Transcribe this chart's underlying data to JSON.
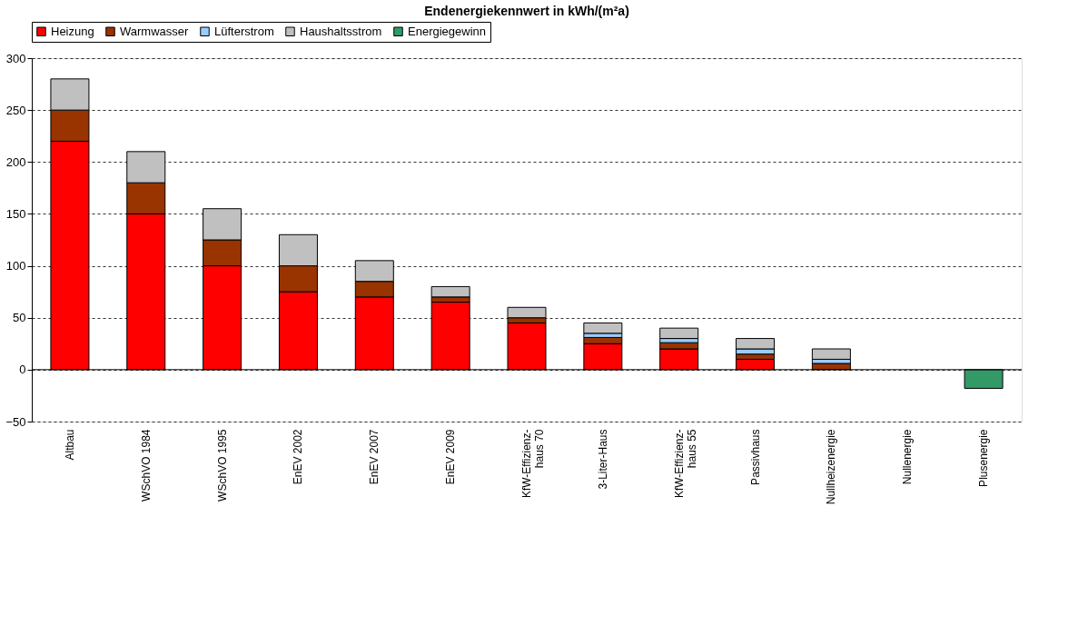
{
  "chart_data": {
    "type": "bar",
    "title": "Endenergiekennwert in kWh/(m²a)",
    "stacked": true,
    "categories": [
      "Altbau",
      "WSchVO 1984",
      "WSchVO 1995",
      "EnEV 2002",
      "EnEV 2007",
      "EnEV 2009",
      "KfW-Effizienz-\nhaus 70",
      "3-Liter-Haus",
      "KfW-Effizienz-\nhaus 55",
      "Passivhaus",
      "Nullheizenergie",
      "Nullenergie",
      "Plusenergie"
    ],
    "series": [
      {
        "name": "Heizung",
        "color": "#ff0000",
        "values": [
          220,
          150,
          100,
          75,
          70,
          65,
          45,
          25,
          20,
          10,
          null,
          null,
          null
        ]
      },
      {
        "name": "Warmwasser",
        "color": "#993300",
        "values": [
          30,
          30,
          25,
          25,
          15,
          5,
          5,
          6,
          6,
          5,
          6,
          null,
          null
        ]
      },
      {
        "name": "Lüfterstrom",
        "color": "#99ccff",
        "values": [
          null,
          null,
          null,
          null,
          null,
          null,
          null,
          4,
          4,
          5,
          4,
          null,
          null
        ]
      },
      {
        "name": "Haushaltsstrom",
        "color": "#c0c0c0",
        "values": [
          30,
          30,
          30,
          30,
          20,
          10,
          10,
          10,
          10,
          10,
          10,
          null,
          null
        ]
      },
      {
        "name": "Energiegewinn",
        "color": "#339966",
        "values": [
          null,
          null,
          null,
          null,
          null,
          null,
          null,
          null,
          null,
          null,
          null,
          null,
          -18
        ]
      }
    ],
    "ylim": [
      -50,
      300
    ],
    "yticks": [
      -50,
      0,
      50,
      100,
      150,
      200,
      250,
      300
    ],
    "grid": "y",
    "legend": "top"
  }
}
